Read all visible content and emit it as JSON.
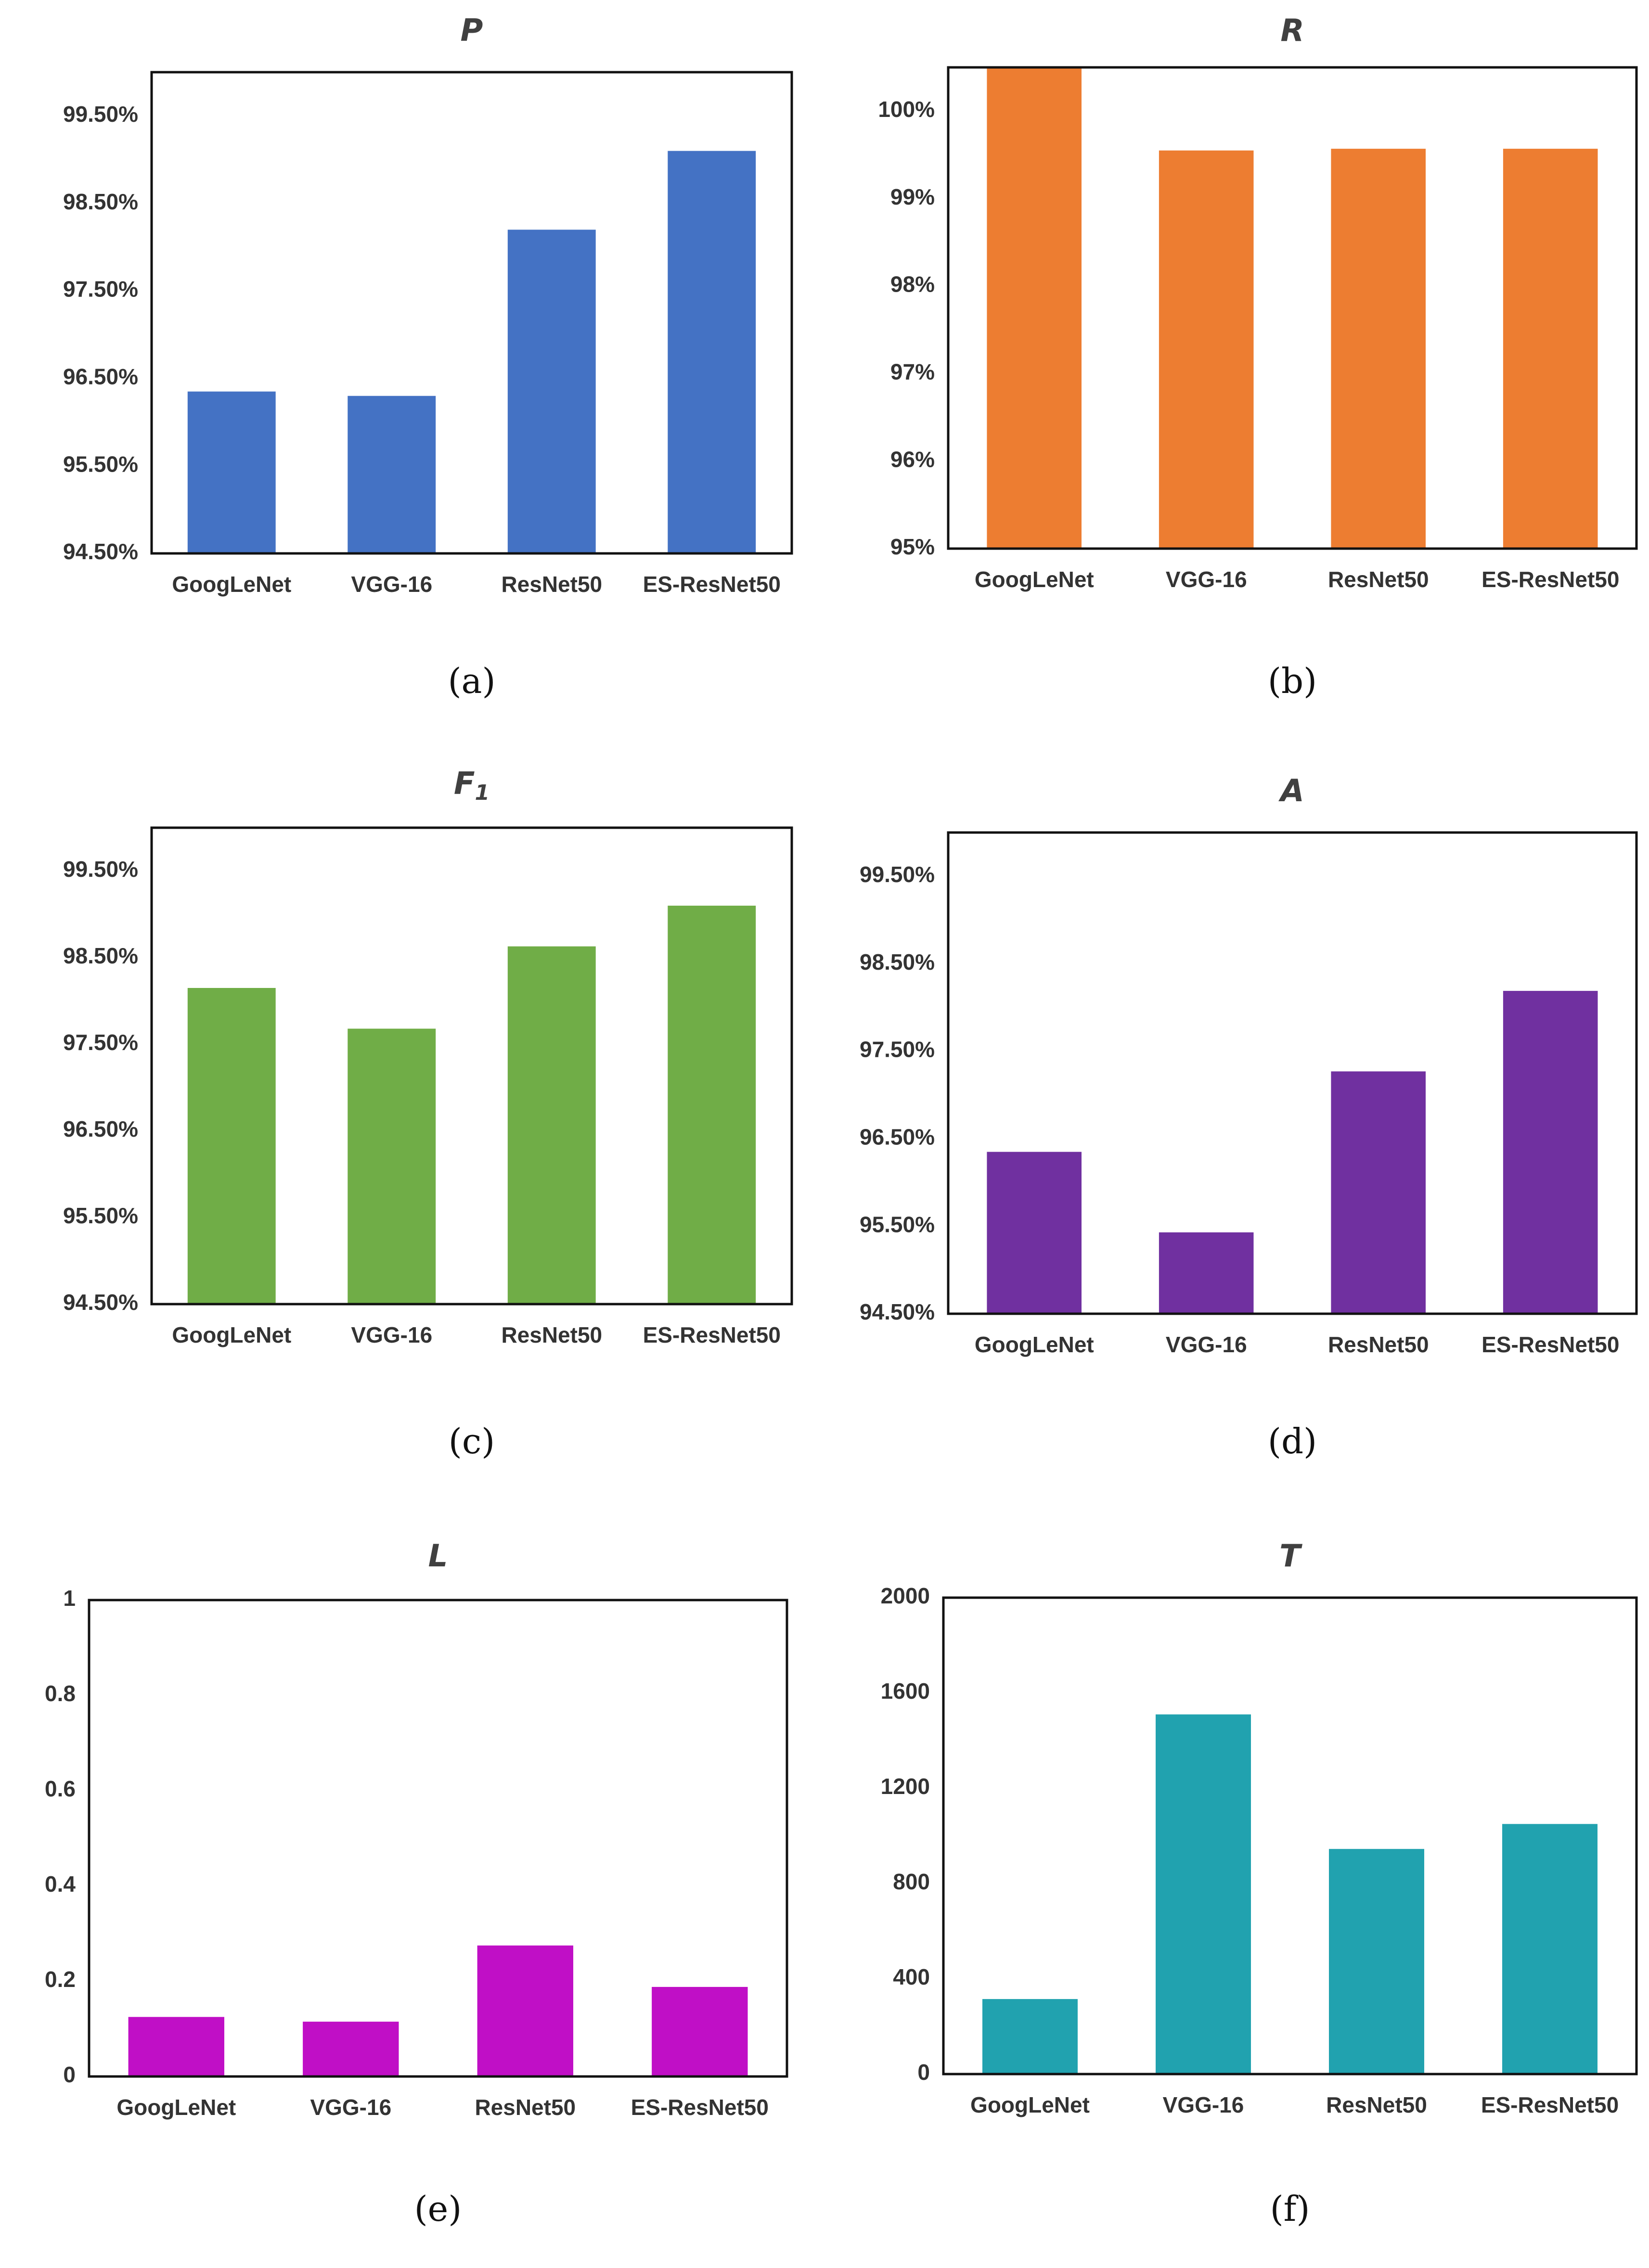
{
  "chart_data": [
    {
      "id": "a",
      "type": "bar",
      "title": "P",
      "caption": "(a)",
      "categories": [
        "GoogLeNet",
        "VGG-16",
        "ResNet50",
        "ES-ResNet50"
      ],
      "values": [
        96.35,
        96.3,
        98.2,
        99.1
      ],
      "ylim": [
        94.5,
        100.0
      ],
      "yticks": [
        94.5,
        95.5,
        96.5,
        97.5,
        98.5,
        99.5
      ],
      "ytick_labels": [
        "94.50%",
        "95.50%",
        "96.50%",
        "97.50%",
        "98.50%",
        "99.50%"
      ],
      "color": "#4472C4",
      "xlabel": "",
      "ylabel": "",
      "grid": false
    },
    {
      "id": "b",
      "type": "bar",
      "title": "R",
      "caption": "(b)",
      "categories": [
        "GoogLeNet",
        "VGG-16",
        "ResNet50",
        "ES-ResNet50"
      ],
      "values": [
        100.5,
        99.55,
        99.57,
        99.57
      ],
      "ylim": [
        95.0,
        100.5
      ],
      "yticks": [
        95,
        96,
        97,
        98,
        99,
        100
      ],
      "ytick_labels": [
        "95%",
        "96%",
        "97%",
        "98%",
        "99%",
        "100%"
      ],
      "color": "#ED7D31",
      "xlabel": "",
      "ylabel": "",
      "grid": false
    },
    {
      "id": "c",
      "type": "bar",
      "title": "F1",
      "caption": "(c)",
      "categories": [
        "GoogLeNet",
        "VGG-16",
        "ResNet50",
        "ES-ResNet50"
      ],
      "values": [
        98.15,
        97.68,
        98.63,
        99.1
      ],
      "ylim": [
        94.5,
        100.0
      ],
      "yticks": [
        94.5,
        95.5,
        96.5,
        97.5,
        98.5,
        99.5
      ],
      "ytick_labels": [
        "94.50%",
        "95.50%",
        "96.50%",
        "97.50%",
        "98.50%",
        "99.50%"
      ],
      "color": "#70AD47",
      "xlabel": "",
      "ylabel": "",
      "grid": false
    },
    {
      "id": "d",
      "type": "bar",
      "title": "A",
      "caption": "(d)",
      "categories": [
        "GoogLeNet",
        "VGG-16",
        "ResNet50",
        "ES-ResNet50"
      ],
      "values": [
        96.35,
        95.43,
        97.27,
        98.19
      ],
      "ylim": [
        94.5,
        100.0
      ],
      "yticks": [
        94.5,
        95.5,
        96.5,
        97.5,
        98.5,
        99.5
      ],
      "ytick_labels": [
        "94.50%",
        "95.50%",
        "96.50%",
        "97.50%",
        "98.50%",
        "99.50%"
      ],
      "color": "#7030A0",
      "xlabel": "",
      "ylabel": "",
      "grid": false
    },
    {
      "id": "e",
      "type": "bar",
      "title": "L",
      "caption": "(e)",
      "categories": [
        "GoogLeNet",
        "VGG-16",
        "ResNet50",
        "ES-ResNet50"
      ],
      "values": [
        0.125,
        0.115,
        0.275,
        0.188
      ],
      "ylim": [
        0,
        1
      ],
      "yticks": [
        0,
        0.2,
        0.4,
        0.6,
        0.8,
        1
      ],
      "ytick_labels": [
        "0",
        "0.2",
        "0.4",
        "0.6",
        "0.8",
        "1"
      ],
      "color": "#C00FC6",
      "xlabel": "",
      "ylabel": "",
      "grid": false
    },
    {
      "id": "f",
      "type": "bar",
      "title": "T",
      "caption": "(f)",
      "categories": [
        "GoogLeNet",
        "VGG-16",
        "ResNet50",
        "ES-ResNet50"
      ],
      "values": [
        315,
        1510,
        945,
        1050
      ],
      "ylim": [
        0,
        2000
      ],
      "yticks": [
        0,
        400,
        800,
        1200,
        1600,
        2000
      ],
      "ytick_labels": [
        "0",
        "400",
        "800",
        "1200",
        "1600",
        "2000"
      ],
      "color": "#21A2AF",
      "xlabel": "",
      "ylabel": "",
      "grid": false
    }
  ]
}
